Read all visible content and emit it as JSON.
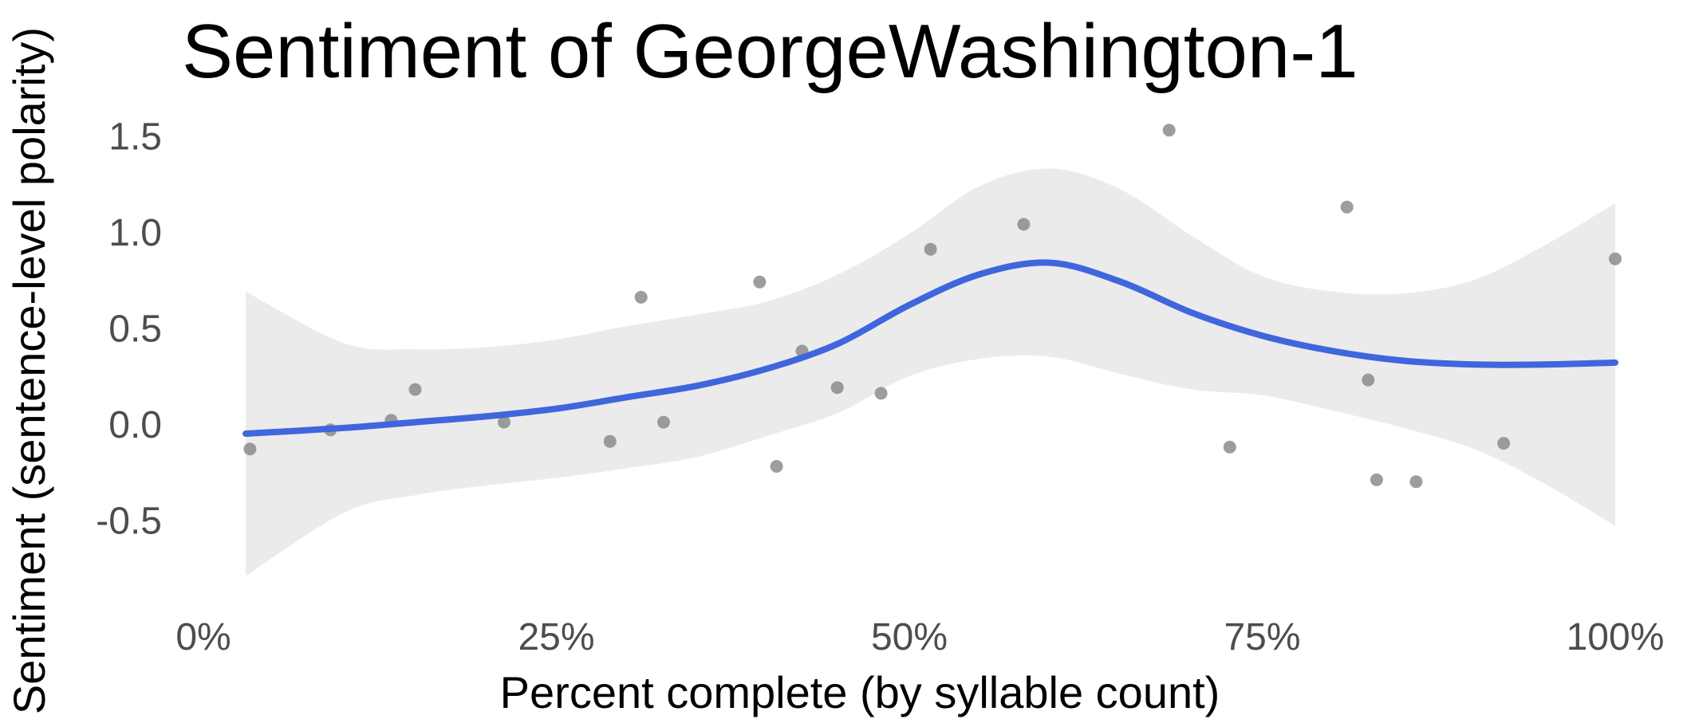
{
  "chart_data": {
    "type": "scatter",
    "title": "Sentiment of GeorgeWashington-1",
    "xlabel": "Percent complete (by syllable count)",
    "ylabel": "Sentiment (sentence-level polarity)",
    "x_ticks": [
      "0%",
      "25%",
      "50%",
      "75%",
      "100%"
    ],
    "x_tick_values": [
      0,
      25,
      50,
      75,
      100
    ],
    "y_ticks": [
      "1.5",
      "1.0",
      "0.5",
      "0.0",
      "-0.5"
    ],
    "y_tick_values": [
      1.5,
      1.0,
      0.5,
      0.0,
      -0.5
    ],
    "xlim": [
      0,
      100
    ],
    "ylim": [
      -0.85,
      1.6
    ],
    "grid": false,
    "points": [
      {
        "x": 3.3,
        "y": -0.13
      },
      {
        "x": 9.0,
        "y": -0.03
      },
      {
        "x": 13.3,
        "y": 0.02
      },
      {
        "x": 15.0,
        "y": 0.18
      },
      {
        "x": 21.3,
        "y": 0.01
      },
      {
        "x": 28.8,
        "y": -0.09
      },
      {
        "x": 31.0,
        "y": 0.66
      },
      {
        "x": 32.6,
        "y": 0.01
      },
      {
        "x": 39.4,
        "y": 0.74
      },
      {
        "x": 40.6,
        "y": -0.22
      },
      {
        "x": 42.4,
        "y": 0.38
      },
      {
        "x": 44.9,
        "y": 0.19
      },
      {
        "x": 48.0,
        "y": 0.16
      },
      {
        "x": 51.5,
        "y": 0.91
      },
      {
        "x": 58.1,
        "y": 1.04
      },
      {
        "x": 68.4,
        "y": 1.53
      },
      {
        "x": 72.7,
        "y": -0.12
      },
      {
        "x": 81.0,
        "y": 1.13
      },
      {
        "x": 82.5,
        "y": 0.23
      },
      {
        "x": 83.1,
        "y": -0.29
      },
      {
        "x": 85.9,
        "y": -0.3
      },
      {
        "x": 92.1,
        "y": -0.1
      },
      {
        "x": 100.0,
        "y": 0.86
      }
    ],
    "smooth_line": {
      "x": [
        3,
        10,
        15,
        20,
        25,
        30,
        35,
        40,
        45,
        50,
        55,
        60,
        65,
        70,
        75,
        80,
        85,
        90,
        95,
        100
      ],
      "y": [
        -0.05,
        -0.02,
        0.01,
        0.04,
        0.08,
        0.14,
        0.2,
        0.29,
        0.42,
        0.62,
        0.78,
        0.84,
        0.74,
        0.58,
        0.46,
        0.38,
        0.33,
        0.31,
        0.31,
        0.32
      ]
    },
    "confidence_band": {
      "x": [
        3,
        10,
        15,
        20,
        25,
        30,
        35,
        40,
        45,
        50,
        55,
        60,
        65,
        70,
        75,
        80,
        85,
        90,
        95,
        100
      ],
      "upper": [
        0.69,
        0.42,
        0.39,
        0.4,
        0.44,
        0.51,
        0.57,
        0.64,
        0.78,
        0.99,
        1.24,
        1.33,
        1.22,
        0.98,
        0.77,
        0.69,
        0.68,
        0.75,
        0.93,
        1.15
      ],
      "lower": [
        -0.79,
        -0.46,
        -0.37,
        -0.32,
        -0.28,
        -0.23,
        -0.17,
        -0.06,
        0.06,
        0.25,
        0.34,
        0.35,
        0.26,
        0.18,
        0.15,
        0.07,
        -0.02,
        -0.13,
        -0.31,
        -0.53
      ]
    },
    "colors": {
      "line": "#3f66dc",
      "band": "#ebebeb",
      "points": "#8c8c8c"
    }
  }
}
